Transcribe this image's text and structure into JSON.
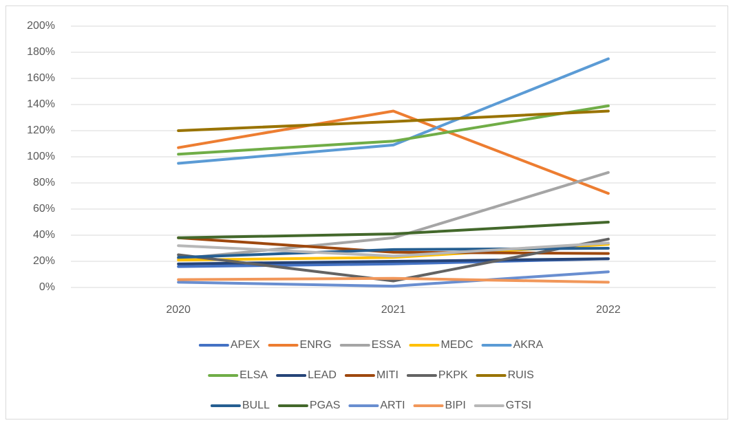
{
  "chart_data": {
    "type": "line",
    "categories": [
      "2020",
      "2021",
      "2022"
    ],
    "series": [
      {
        "name": "APEX",
        "color": "#4472c4",
        "values": [
          16,
          18,
          22
        ]
      },
      {
        "name": "ENRG",
        "color": "#ed7d31",
        "values": [
          107,
          135,
          72
        ]
      },
      {
        "name": "ESSA",
        "color": "#a5a5a5",
        "values": [
          22,
          38,
          88
        ]
      },
      {
        "name": "MEDC",
        "color": "#ffc000",
        "values": [
          21,
          23,
          33
        ]
      },
      {
        "name": "AKRA",
        "color": "#5b9bd5",
        "values": [
          95,
          109,
          175
        ]
      },
      {
        "name": "ELSA",
        "color": "#70ad47",
        "values": [
          102,
          112,
          139
        ]
      },
      {
        "name": "LEAD",
        "color": "#264478",
        "values": [
          18,
          20,
          22
        ]
      },
      {
        "name": "MITI",
        "color": "#9e480e",
        "values": [
          38,
          27,
          26
        ]
      },
      {
        "name": "PKPK",
        "color": "#636363",
        "values": [
          25,
          5,
          37
        ]
      },
      {
        "name": "RUIS",
        "color": "#997300",
        "values": [
          120,
          127,
          135
        ]
      },
      {
        "name": "BULL",
        "color": "#255e91",
        "values": [
          23,
          29,
          30
        ]
      },
      {
        "name": "PGAS",
        "color": "#43682b",
        "values": [
          38,
          41,
          50
        ]
      },
      {
        "name": "ARTI",
        "color": "#698ed0",
        "values": [
          4,
          1,
          12
        ]
      },
      {
        "name": "BIPI",
        "color": "#f1975a",
        "values": [
          6,
          7,
          4
        ]
      },
      {
        "name": "GTSI",
        "color": "#b7b7b7",
        "values": [
          32,
          24,
          34
        ]
      }
    ],
    "ylim": [
      0,
      200
    ],
    "yticks": [
      {
        "value": 0,
        "label": "0%"
      },
      {
        "value": 20,
        "label": "20%"
      },
      {
        "value": 40,
        "label": "40%"
      },
      {
        "value": 60,
        "label": "60%"
      },
      {
        "value": 80,
        "label": "80%"
      },
      {
        "value": 100,
        "label": "100%"
      },
      {
        "value": 120,
        "label": "120%"
      },
      {
        "value": 140,
        "label": "140%"
      },
      {
        "value": 160,
        "label": "160%"
      },
      {
        "value": 180,
        "label": "180%"
      },
      {
        "value": 200,
        "label": "200%"
      }
    ],
    "grid": true,
    "legend": "bottom"
  }
}
